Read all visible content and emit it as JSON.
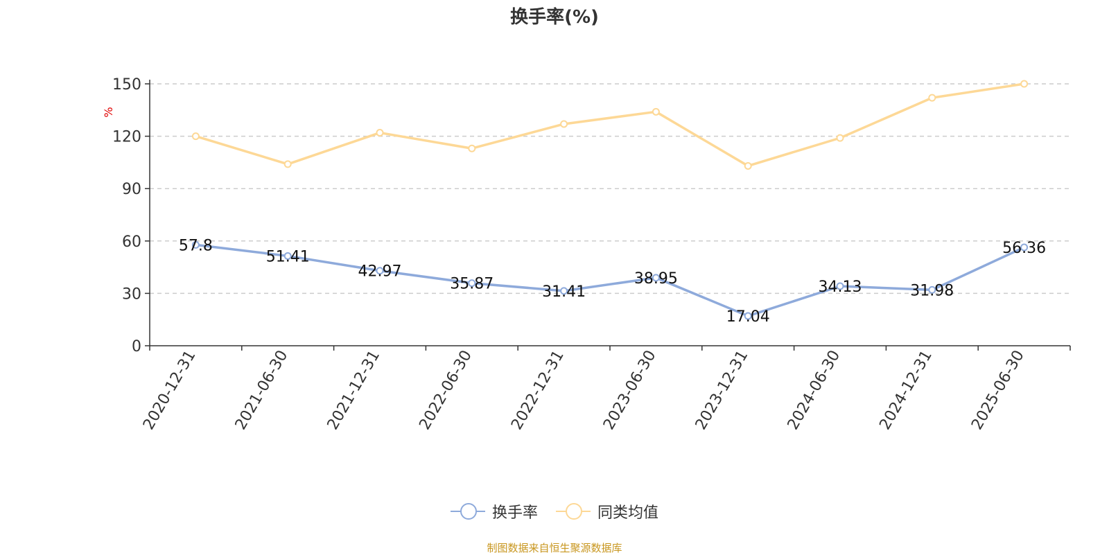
{
  "chart_data": {
    "type": "line",
    "title": "换手率(%)",
    "ylabel": "%",
    "xlabel": "",
    "categories": [
      "2020-12-31",
      "2021-06-30",
      "2021-12-31",
      "2022-06-30",
      "2022-12-31",
      "2023-06-30",
      "2023-12-31",
      "2024-06-30",
      "2024-12-31",
      "2025-06-30"
    ],
    "ylim": [
      0,
      150
    ],
    "yticks": [
      0,
      30,
      60,
      90,
      120,
      150
    ],
    "grid": true,
    "legend_position": "bottom",
    "series": [
      {
        "name": "换手率",
        "color": "#8eaadb",
        "show_labels": true,
        "values": [
          57.8,
          51.41,
          42.97,
          35.87,
          31.41,
          38.95,
          17.04,
          34.13,
          31.98,
          56.36
        ]
      },
      {
        "name": "同类均值",
        "color": "#fdd896",
        "show_labels": false,
        "values": [
          120,
          104,
          122,
          113,
          127,
          134,
          103,
          119,
          142,
          150
        ]
      }
    ],
    "source_note": "制图数据来自恒生聚源数据库"
  }
}
